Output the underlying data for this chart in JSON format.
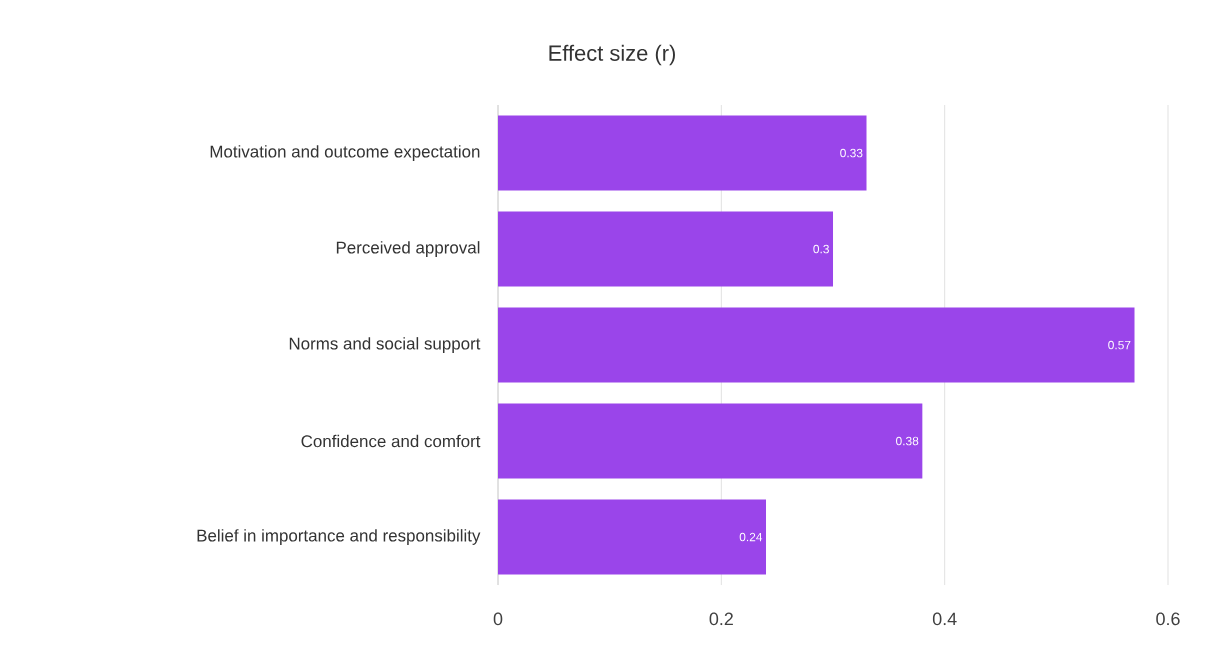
{
  "chart_data": {
    "type": "bar",
    "orientation": "horizontal",
    "title": "Effect size (r)",
    "categories": [
      "Motivation and outcome expectation",
      "Perceived approval",
      "Norms and social support",
      "Confidence and comfort",
      "Belief in importance and responsibility"
    ],
    "values": [
      0.33,
      0.3,
      0.57,
      0.38,
      0.24
    ],
    "color": "#9a45ea",
    "data_labels": true,
    "xlim": [
      0,
      0.6
    ],
    "xticks": [
      0,
      0.2,
      0.4,
      0.6
    ],
    "grid": "x"
  }
}
